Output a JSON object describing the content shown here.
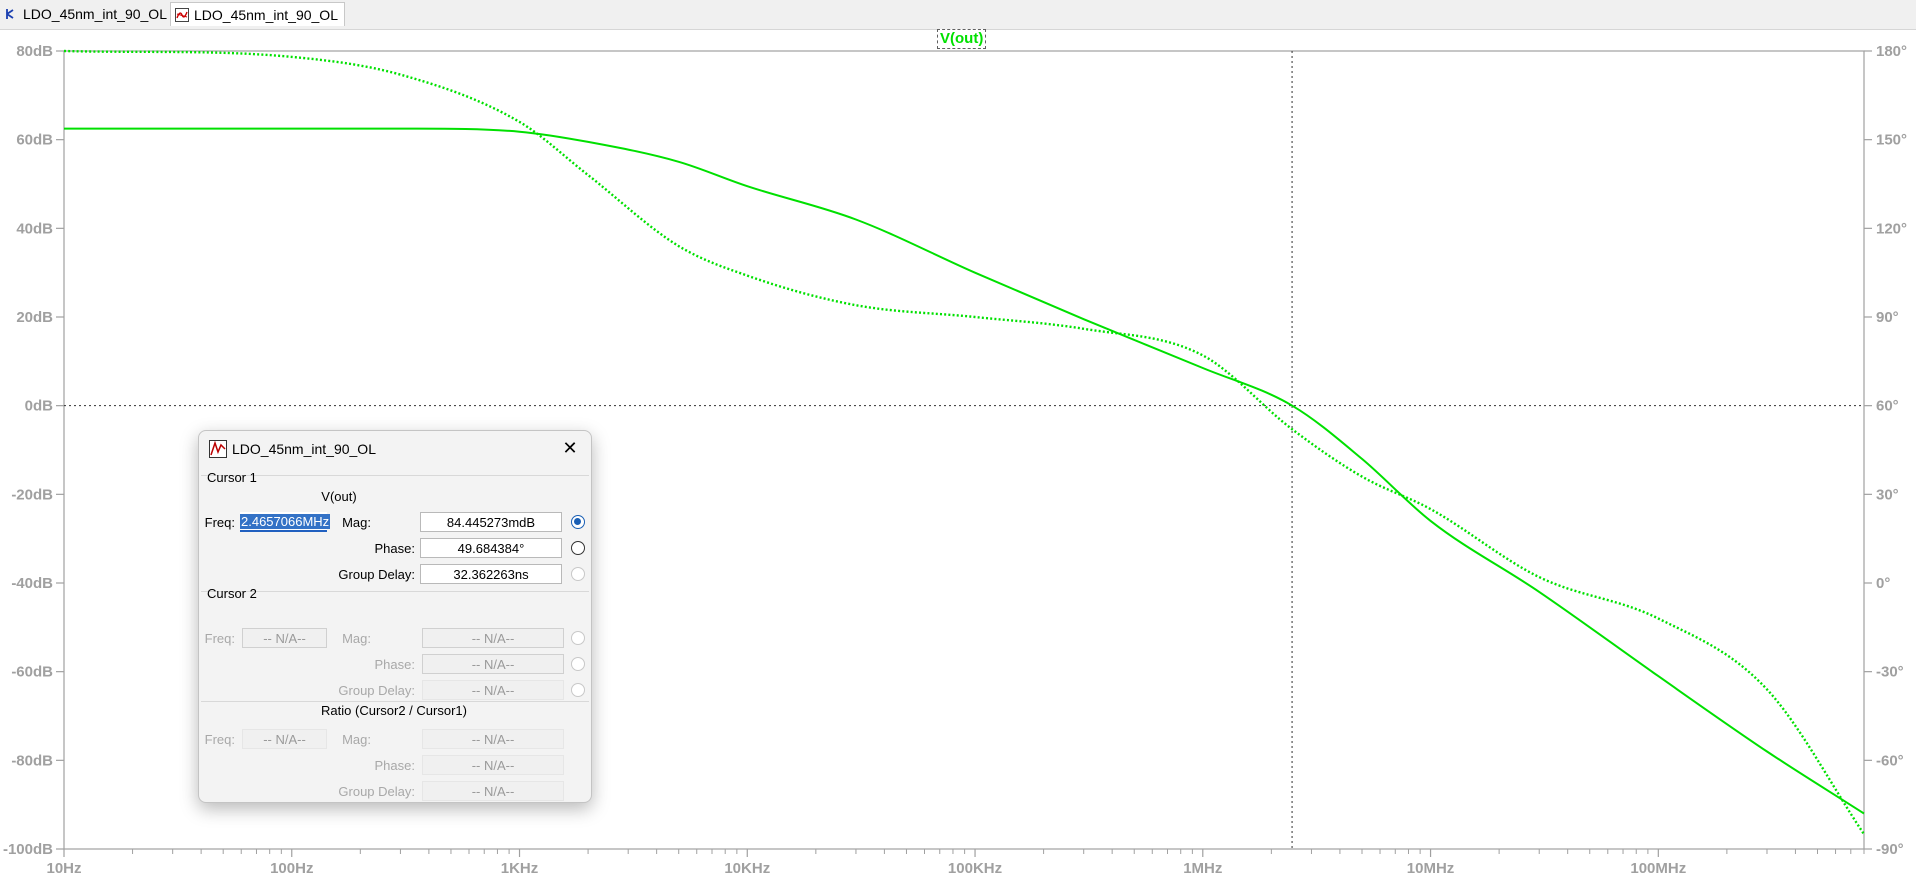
{
  "tabs": [
    {
      "label": "LDO_45nm_int_90_OL",
      "icon": "schematic-icon",
      "active": false
    },
    {
      "label": "LDO_45nm_int_90_OL",
      "icon": "waveform-icon",
      "active": true
    }
  ],
  "plot": {
    "trace_label": "V(out)",
    "trace_color": "#00e000",
    "left_ticks": [
      "80dB",
      "60dB",
      "40dB",
      "20dB",
      "0dB",
      "-20dB",
      "-40dB",
      "-60dB",
      "-80dB",
      "-100dB"
    ],
    "right_ticks": [
      "180°",
      "150°",
      "120°",
      "90°",
      "60°",
      "30°",
      "0°",
      "-30°",
      "-60°",
      "-90°"
    ],
    "x_ticks": [
      "10Hz",
      "100Hz",
      "1KHz",
      "10KHz",
      "100KHz",
      "1MHz",
      "10MHz",
      "100MHz"
    ]
  },
  "chart_data": {
    "type": "line",
    "title": "V(out)",
    "x_scale": "log",
    "xlim_hz": [
      10,
      800000000
    ],
    "ylim_db": [
      -100,
      80
    ],
    "ylim_phase_deg": [
      -90,
      180
    ],
    "grid": false,
    "series": [
      {
        "name": "V(out)",
        "style": "solid",
        "axis": "left",
        "x_hz": [
          10,
          100,
          300,
          1000,
          2000,
          5000,
          10000,
          30000,
          100000,
          300000,
          1000000,
          2470000,
          5000000,
          10000000,
          30000000,
          100000000,
          300000000,
          800000000
        ],
        "y_db": [
          62.5,
          62.5,
          62.5,
          61.8,
          59.5,
          55,
          49.5,
          42,
          30,
          19.5,
          8.5,
          0,
          -12,
          -26,
          -42,
          -61,
          -78,
          -92
        ]
      },
      {
        "name": "V(out)",
        "style": "dotted",
        "axis": "right",
        "x_hz": [
          10,
          100,
          300,
          1000,
          2000,
          5000,
          10000,
          30000,
          100000,
          300000,
          1000000,
          2470000,
          5000000,
          10000000,
          30000000,
          100000000,
          300000000,
          800000000
        ],
        "y_phase_deg": [
          180,
          178,
          172,
          156,
          138,
          114,
          104,
          94,
          90,
          86,
          77,
          52,
          36,
          25,
          2,
          -12,
          -36,
          -85
        ]
      }
    ],
    "cursor": {
      "freq": "2.4657066MHz",
      "mag_db": 0.084445273
    }
  },
  "dialog": {
    "title": "LDO_45nm_int_90_OL",
    "cursor1": {
      "section": "Cursor 1",
      "trace": "V(out)",
      "freq_label": "Freq:",
      "freq": "2.4657066MHz",
      "mag_label": "Mag:",
      "mag": "84.445273mdB",
      "phase_label": "Phase:",
      "phase": "49.684384°",
      "gd_label": "Group Delay:",
      "gd": "32.362263ns"
    },
    "cursor2": {
      "section": "Cursor 2",
      "freq_label": "Freq:",
      "freq": "-- N/A--",
      "mag_label": "Mag:",
      "mag": "-- N/A--",
      "phase_label": "Phase:",
      "phase": "-- N/A--",
      "gd_label": "Group Delay:",
      "gd": "-- N/A--"
    },
    "ratio": {
      "section": "Ratio (Cursor2 / Cursor1)",
      "freq_label": "Freq:",
      "freq": "-- N/A--",
      "mag_label": "Mag:",
      "mag": "-- N/A--",
      "phase_label": "Phase:",
      "phase": "-- N/A--",
      "gd_label": "Group Delay:",
      "gd": "-- N/A--"
    }
  }
}
